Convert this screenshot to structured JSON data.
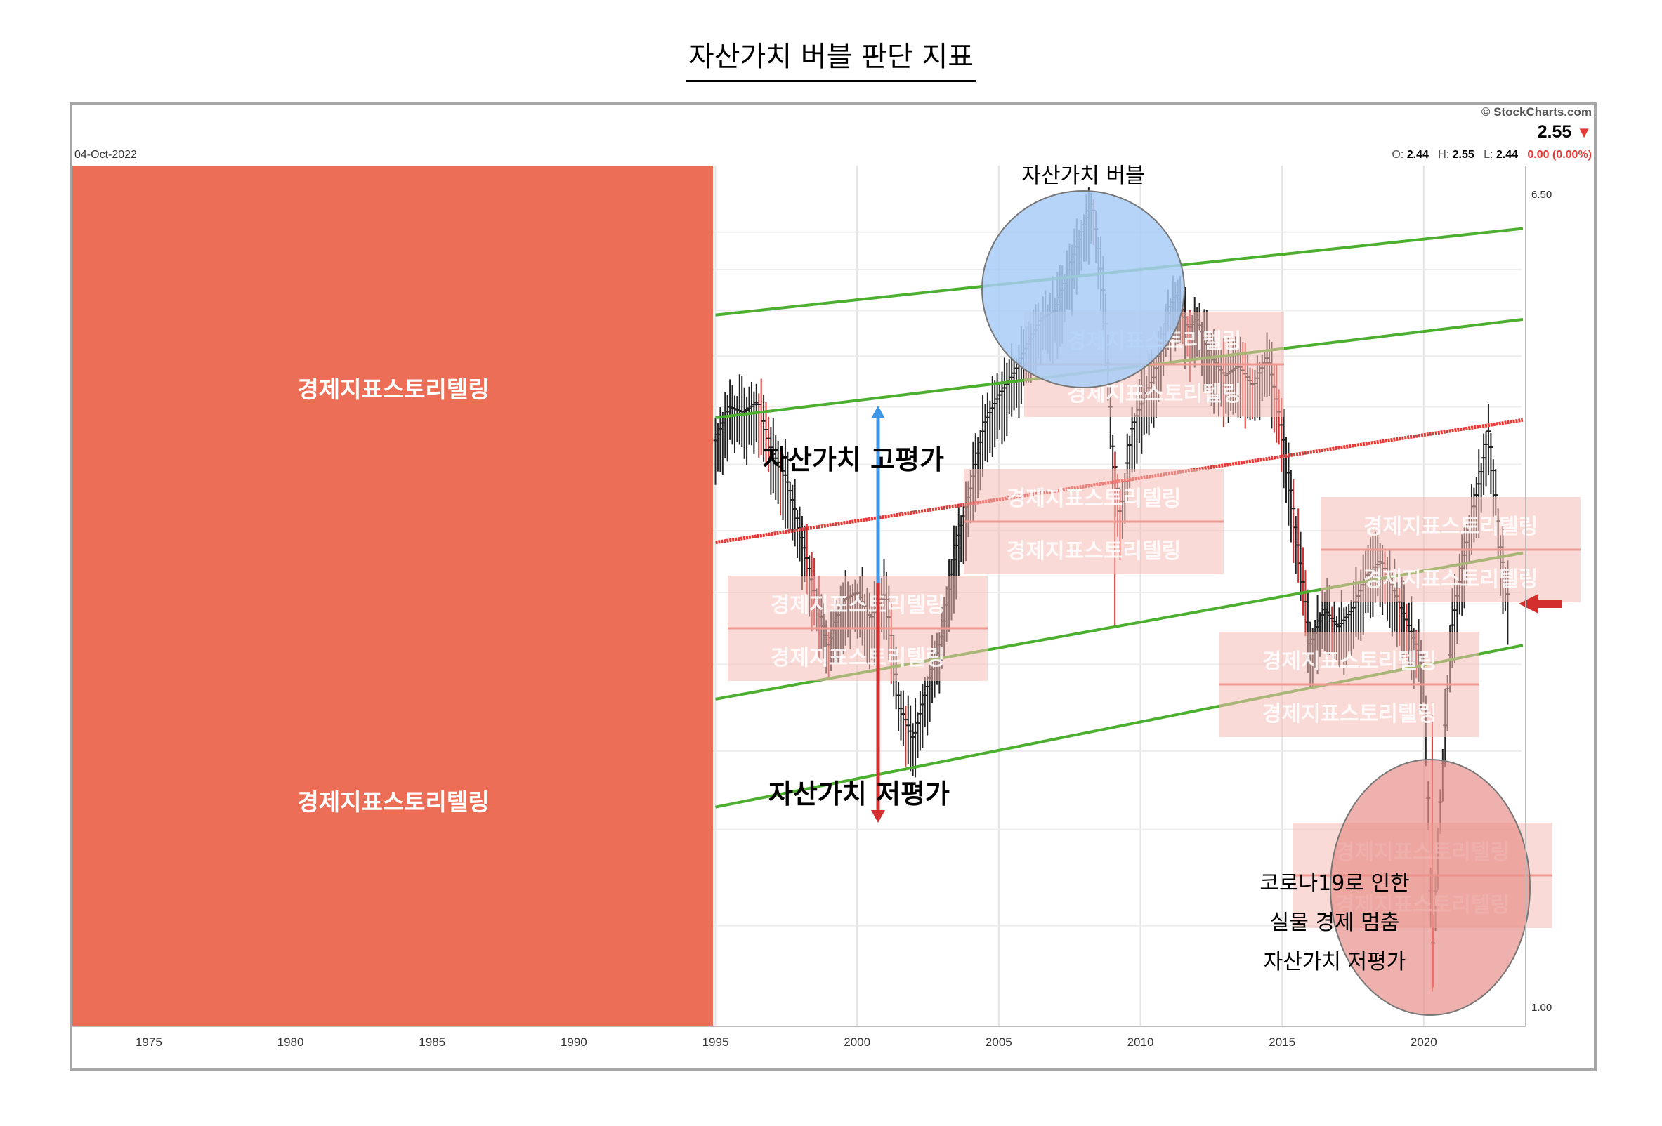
{
  "title": "자산가치 버블 판단 지표",
  "header": {
    "date": "04-Oct-2022",
    "copyright": "© StockCharts.com",
    "last": "2.55",
    "ohlc": {
      "open": "2.44",
      "high": "2.55",
      "low": "2.44",
      "change": "0.00 (0.00%)"
    }
  },
  "watermark": "경제지표스토리텔링",
  "annotations": {
    "bubble": "자산가치 버블",
    "overvalued": "자산가치  고평가",
    "undervalued": "자산가치  저평가",
    "covid": [
      "코로나19로 인한",
      "실물 경제 멈춤",
      "자산가치 저평가"
    ]
  },
  "colors": {
    "candle": "#222222",
    "down_candle": "#d32f2f",
    "trend_channel": "#4caf2f",
    "trend_center": "#e53935",
    "bubble_circle": "#a8cdf7",
    "covid_circle": "#e8908a",
    "cover_block": "#ec6e56",
    "arrow_up": "#3f97e8",
    "arrow_down": "#d32f2f"
  },
  "chart_data": {
    "type": "line",
    "log_scale": true,
    "x_ticks": [
      1975,
      1980,
      1985,
      1990,
      1995,
      2000,
      2005,
      2010,
      2015,
      2020
    ],
    "y_tick_labels": [
      "6.50",
      "1.00"
    ],
    "xlim": [
      1972.3,
      2023.6
    ],
    "ylim": [
      0.95,
      7.0
    ],
    "price_series": [
      [
        1995.0,
        3.7
      ],
      [
        1995.5,
        4.0
      ],
      [
        1996.0,
        3.95
      ],
      [
        1996.5,
        4.05
      ],
      [
        1997.0,
        3.6
      ],
      [
        1997.5,
        3.4
      ],
      [
        1998.0,
        3.0
      ],
      [
        1998.5,
        2.6
      ],
      [
        1999.0,
        2.3
      ],
      [
        1999.5,
        2.55
      ],
      [
        2000.0,
        2.6
      ],
      [
        2000.5,
        2.45
      ],
      [
        2001.0,
        2.6
      ],
      [
        2001.5,
        2.0
      ],
      [
        2002.0,
        1.85
      ],
      [
        2002.5,
        2.1
      ],
      [
        2003.0,
        2.35
      ],
      [
        2003.5,
        2.9
      ],
      [
        2004.0,
        3.3
      ],
      [
        2004.5,
        3.85
      ],
      [
        2005.0,
        4.1
      ],
      [
        2005.5,
        4.3
      ],
      [
        2006.0,
        4.6
      ],
      [
        2006.5,
        4.9
      ],
      [
        2007.0,
        5.0
      ],
      [
        2007.5,
        5.5
      ],
      [
        2008.0,
        6.1
      ],
      [
        2008.3,
        6.45
      ],
      [
        2008.7,
        5.2
      ],
      [
        2009.0,
        3.7
      ],
      [
        2009.3,
        3.1
      ],
      [
        2009.7,
        3.8
      ],
      [
        2010.0,
        4.0
      ],
      [
        2010.5,
        4.3
      ],
      [
        2011.0,
        5.0
      ],
      [
        2011.3,
        5.2
      ],
      [
        2011.7,
        4.8
      ],
      [
        2012.0,
        4.9
      ],
      [
        2012.5,
        4.5
      ],
      [
        2013.0,
        4.3
      ],
      [
        2013.5,
        4.4
      ],
      [
        2014.0,
        4.2
      ],
      [
        2014.5,
        4.5
      ],
      [
        2015.0,
        3.8
      ],
      [
        2015.5,
        3.0
      ],
      [
        2016.0,
        2.3
      ],
      [
        2016.5,
        2.5
      ],
      [
        2017.0,
        2.4
      ],
      [
        2017.5,
        2.5
      ],
      [
        2018.0,
        2.7
      ],
      [
        2018.5,
        2.8
      ],
      [
        2019.0,
        2.6
      ],
      [
        2019.5,
        2.4
      ],
      [
        2020.0,
        2.2
      ],
      [
        2020.3,
        1.1
      ],
      [
        2020.7,
        1.8
      ],
      [
        2021.0,
        2.4
      ],
      [
        2021.5,
        2.9
      ],
      [
        2022.0,
        3.4
      ],
      [
        2022.3,
        3.8
      ],
      [
        2022.7,
        2.9
      ],
      [
        2023.0,
        2.55
      ]
    ],
    "trend_lines": [
      {
        "name": "upper",
        "from": [
          1995.0,
          4.95
        ],
        "to": [
          2023.5,
          6.05
        ]
      },
      {
        "name": "upper-mid",
        "from": [
          1995.0,
          3.9
        ],
        "to": [
          2023.5,
          4.9
        ]
      },
      {
        "name": "center",
        "from": [
          1995.0,
          2.92
        ],
        "to": [
          2023.5,
          3.88
        ]
      },
      {
        "name": "lower-mid",
        "from": [
          1995.0,
          2.03
        ],
        "to": [
          2023.5,
          2.85
        ]
      },
      {
        "name": "lower",
        "from": [
          1995.0,
          1.58
        ],
        "to": [
          2023.5,
          2.3
        ]
      }
    ],
    "last_value": 2.55
  }
}
